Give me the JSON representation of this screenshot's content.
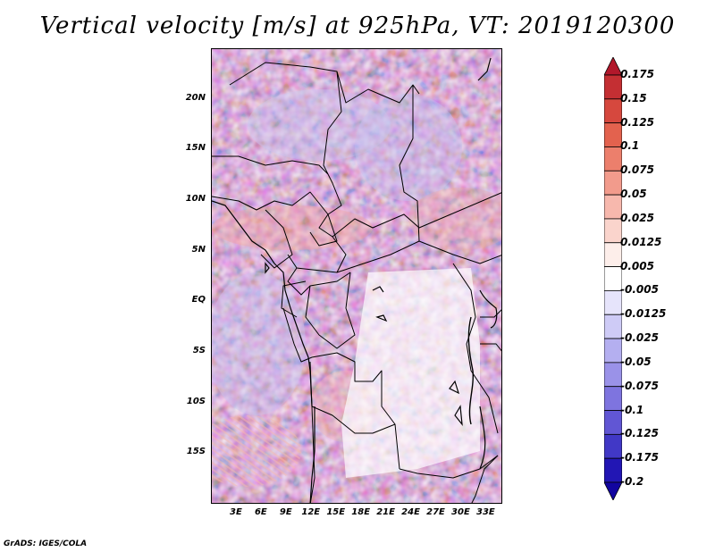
{
  "title": "Vertical velocity [m/s] at 925hPa, VT: 2019120300",
  "credit": "GrADS: IGES/COLA",
  "map": {
    "lat_labels": [
      "20N",
      "15N",
      "10N",
      "5N",
      "EQ",
      "5S",
      "10S",
      "15S"
    ],
    "lat_values": [
      20,
      15,
      10,
      5,
      0,
      -5,
      -10,
      -15
    ],
    "lon_labels": [
      "3E",
      "6E",
      "9E",
      "12E",
      "15E",
      "18E",
      "21E",
      "24E",
      "27E",
      "30E",
      "33E"
    ],
    "lon_values": [
      3,
      6,
      9,
      12,
      15,
      18,
      21,
      24,
      27,
      30,
      33
    ],
    "lat_range": [
      -20,
      25
    ],
    "lon_range": [
      0,
      35
    ]
  },
  "colorbar": {
    "labels": [
      "0.175",
      "0.15",
      "0.125",
      "0.1",
      "0.075",
      "0.05",
      "0.025",
      "0.0125",
      "0.005",
      "-0.005",
      "-0.0125",
      "-0.025",
      "-0.05",
      "-0.075",
      "-0.1",
      "-0.125",
      "-0.175",
      "-0.2"
    ],
    "colors": [
      "#b2182b",
      "#c42f33",
      "#d6483e",
      "#e3624e",
      "#ec7f6c",
      "#f29b8c",
      "#f7b8ad",
      "#fad4cc",
      "#fdeeea",
      "#ffffff",
      "#e6e4fb",
      "#cecbf6",
      "#b4aff0",
      "#9a92e8",
      "#7e74df",
      "#6156d4",
      "#4138c6",
      "#2216b4",
      "#1205a0"
    ]
  }
}
